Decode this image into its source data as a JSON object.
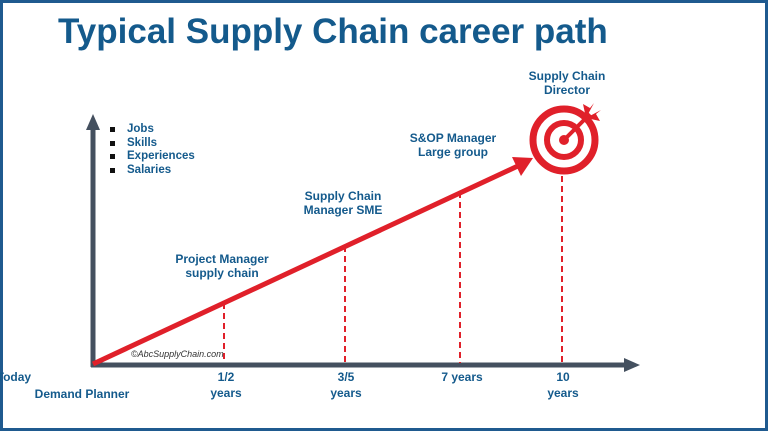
{
  "title": "Typical Supply Chain career path",
  "bullets": [
    "Jobs",
    "Skills",
    "Experiences",
    "Salaries"
  ],
  "milestones": [
    {
      "role_line1": "Project Manager",
      "role_line2": "supply chain",
      "time_line1": "1/2",
      "time_line2": "years"
    },
    {
      "role_line1": "Supply Chain",
      "role_line2": "Manager SME",
      "time_line1": "3/5",
      "time_line2": "years"
    },
    {
      "role_line1": "S&OP Manager",
      "role_line2": "Large group",
      "time_line1": "7 years",
      "time_line2": ""
    },
    {
      "role_line1": "Supply Chain",
      "role_line2": "Director",
      "time_line1": "10",
      "time_line2": "years"
    }
  ],
  "start": {
    "line1": "Today",
    "line2": "Demand Planner"
  },
  "copyright": "©AbcSupplyChain.com",
  "icons": {
    "goal": "target-with-arrow-icon"
  },
  "colors": {
    "title": "#145a8c",
    "path": "#e0202a",
    "axis": "#44505f",
    "border": "#1f5a8f"
  }
}
